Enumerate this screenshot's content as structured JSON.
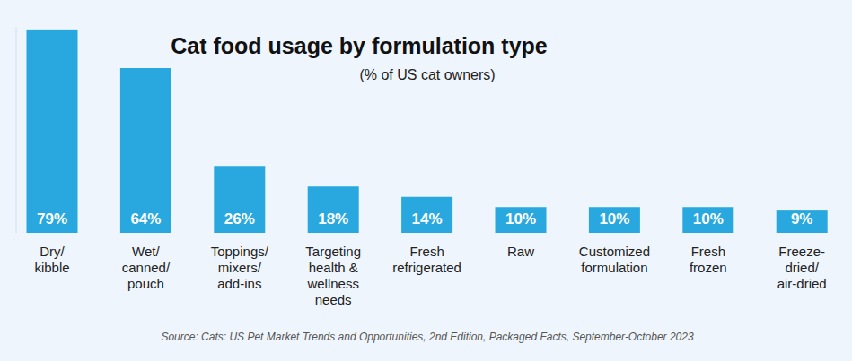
{
  "chart_data": {
    "type": "bar",
    "title": "Cat food usage by formulation type",
    "subtitle": "(% of US cat owners)",
    "source": "Source: Cats: US Pet Market Trends and Opportunities, 2nd Edition, Packaged Facts, September-October 2023",
    "categories": [
      "Dry/\nkibble",
      "Wet/\ncanned/\npouch",
      "Toppings/\nmixers/\nadd-ins",
      "Targeting\nhealth &\nwellness\nneeds",
      "Fresh\nrefrigerated",
      "Raw",
      "Customized\nformulation",
      "Fresh\nfrozen",
      "Freeze-\ndried/\nair-dried"
    ],
    "values": [
      79,
      64,
      26,
      18,
      14,
      10,
      10,
      10,
      9
    ],
    "value_labels": [
      "79%",
      "64%",
      "26%",
      "18%",
      "14%",
      "10%",
      "10%",
      "10%",
      "9%"
    ],
    "color": "#29a8e0",
    "ylim": [
      0,
      80
    ],
    "yticks": [],
    "tick_labels": false,
    "data_labels": true,
    "grid": false
  }
}
